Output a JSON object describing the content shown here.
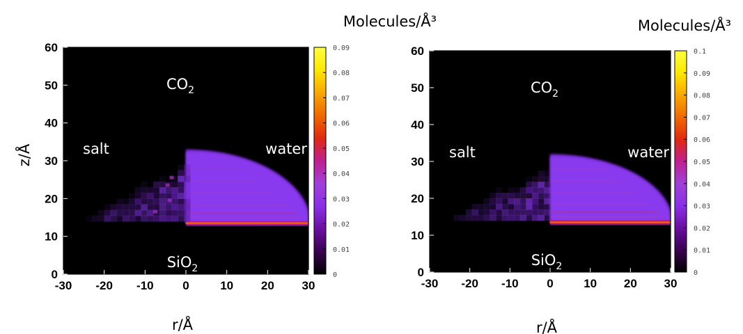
{
  "colors": {
    "background": "#000000",
    "colormap": [
      "#000000",
      "#3a0050",
      "#6a10a0",
      "#8a30e8",
      "#a040d8",
      "#c02090",
      "#e02a10",
      "#f06a00",
      "#f8a800",
      "#ffe800",
      "#ffff40"
    ]
  },
  "chart_data": [
    {
      "type": "heatmap",
      "colorbar_title": "Molecules/Å³",
      "colorbar_range": [
        0,
        0.09
      ],
      "colorbar_ticks": [
        "0.09",
        "0.08",
        "0.07",
        "0.06",
        "0.05",
        "0.04",
        "0.03",
        "0.02",
        "0.01",
        "0"
      ],
      "xlabel": "r/Å",
      "ylabel": "z/Å",
      "xlim": [
        -30,
        30
      ],
      "ylim": [
        0,
        60
      ],
      "xticks": [
        "-30",
        "-20",
        "-10",
        "0",
        "10",
        "20",
        "30"
      ],
      "yticks": [
        "60",
        "50",
        "40",
        "30",
        "20",
        "10",
        "0"
      ],
      "annotations": {
        "top": "CO",
        "top_sub": "2",
        "bottom": "SiO",
        "bottom_sub": "2",
        "left": "salt",
        "right": "water"
      },
      "regions": {
        "water_dome": {
          "r_max": 30,
          "z_base": 13,
          "z_top": 33
        },
        "salt_cluster": {
          "r_min": -26,
          "z_base": 14,
          "z_top": 29
        },
        "interface_layer": {
          "z": 13.5,
          "density": 0.05
        }
      }
    },
    {
      "type": "heatmap",
      "colorbar_title": "Molecules/Å³",
      "colorbar_range": [
        0,
        0.1
      ],
      "colorbar_ticks": [
        "0.1",
        "0.09",
        "0.08",
        "0.07",
        "0.06",
        "0.05",
        "0.04",
        "0.03",
        "0.02",
        "0.01",
        "0"
      ],
      "xlabel": "r/Å",
      "ylabel": "",
      "xlim": [
        -30,
        30
      ],
      "ylim": [
        0,
        60
      ],
      "xticks": [
        "-30",
        "-20",
        "-10",
        "0",
        "10",
        "20",
        "30"
      ],
      "yticks": [
        "60",
        "50",
        "40",
        "30",
        "20",
        "10",
        "0"
      ],
      "annotations": {
        "top": "CO",
        "top_sub": "2",
        "bottom": "SiO",
        "bottom_sub": "2",
        "left": "salt",
        "right": "water"
      },
      "regions": {
        "water_dome": {
          "r_max": 30,
          "z_base": 13,
          "z_top": 32
        },
        "salt_cluster": {
          "r_min": -27,
          "z_base": 14,
          "z_top": 28
        },
        "interface_layer": {
          "z": 13.5,
          "density": 0.05
        }
      }
    }
  ]
}
